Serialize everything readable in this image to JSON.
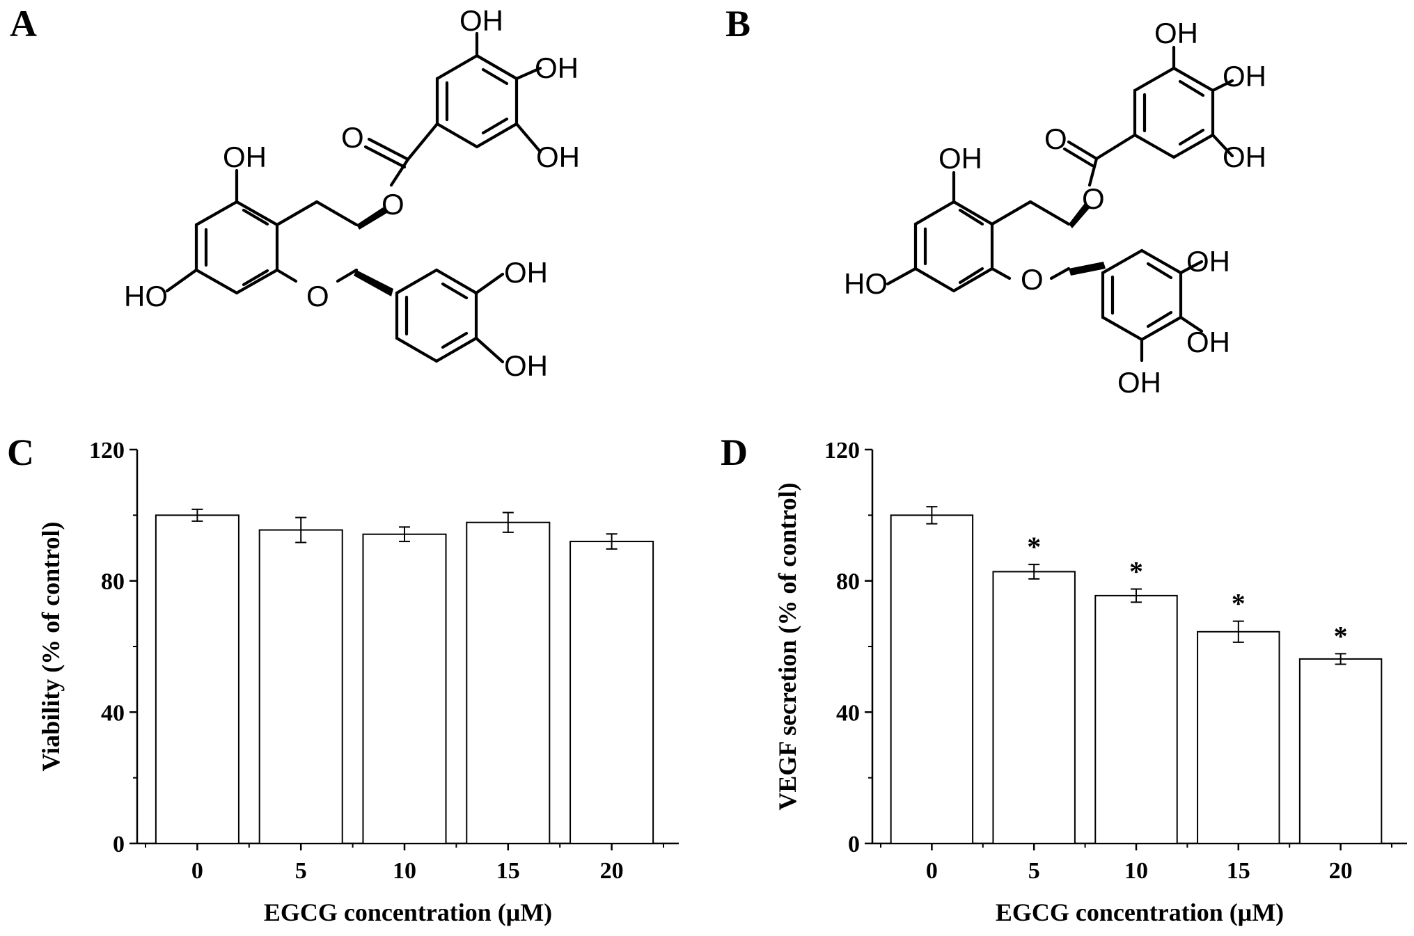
{
  "panels": {
    "a": "A",
    "b": "B",
    "c": "C",
    "d": "D"
  },
  "structures": {
    "a_atoms": [
      "OH",
      "OH",
      "O",
      "OH",
      "OH",
      "O",
      "HO",
      "O",
      "OH",
      "OH"
    ],
    "b_atoms": [
      "OH",
      "OH",
      "O",
      "OH",
      "OH",
      "O",
      "HO",
      "O",
      "OH",
      "OH",
      "OH"
    ]
  },
  "chart_data": [
    {
      "type": "bar",
      "panel": "C",
      "categories": [
        "0",
        "5",
        "10",
        "15",
        "20"
      ],
      "values": [
        100,
        95.5,
        94.2,
        97.8,
        92.0
      ],
      "errors": [
        1.8,
        3.8,
        2.2,
        3.0,
        2.3
      ],
      "significance": [
        "",
        "",
        "",
        "",
        ""
      ],
      "xlabel": "EGCG concentration (μM)",
      "ylabel": "Viability (% of control)",
      "ylim": [
        0,
        120
      ],
      "yticks": [
        0,
        40,
        80,
        120
      ],
      "colors": {
        "bar_fill": "#ffffff",
        "bar_stroke": "#000000"
      }
    },
    {
      "type": "bar",
      "panel": "D",
      "categories": [
        "0",
        "5",
        "10",
        "15",
        "20"
      ],
      "values": [
        100,
        82.8,
        75.5,
        64.5,
        56.2
      ],
      "errors": [
        2.6,
        2.2,
        2.0,
        3.2,
        1.6
      ],
      "significance": [
        "",
        "*",
        "*",
        "*",
        "*"
      ],
      "xlabel": "EGCG concentration (μM)",
      "ylabel": "VEGF secretion (% of control)",
      "ylim": [
        0,
        120
      ],
      "yticks": [
        0,
        40,
        80,
        120
      ],
      "colors": {
        "bar_fill": "#ffffff",
        "bar_stroke": "#000000"
      }
    }
  ]
}
